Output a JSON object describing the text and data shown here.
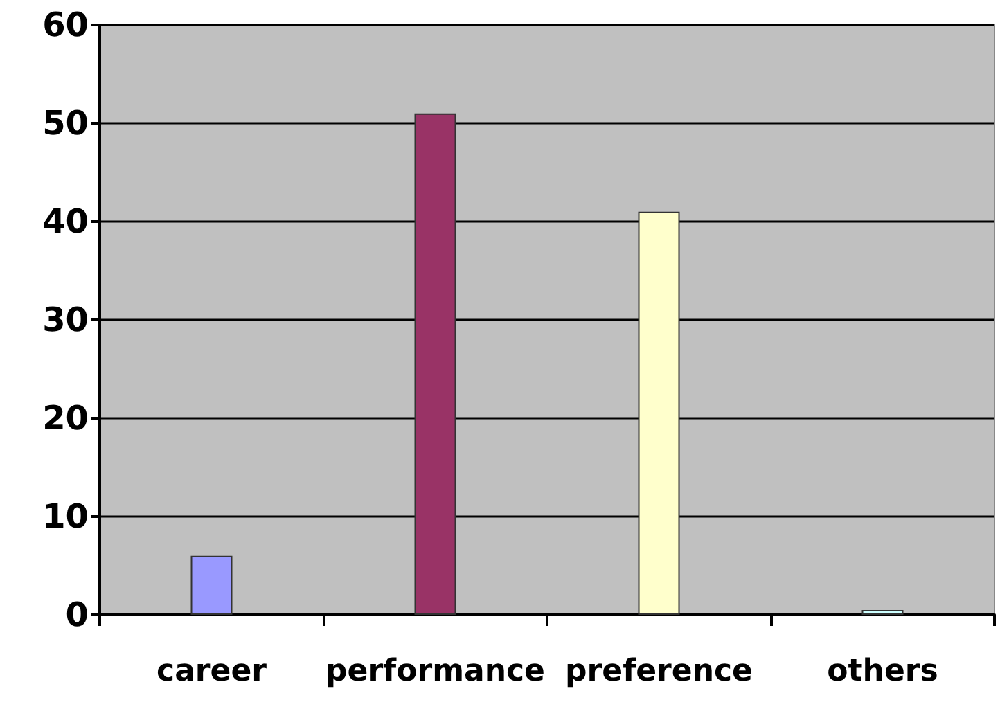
{
  "chart_data": {
    "type": "bar",
    "categories": [
      "career",
      "performance",
      "preference",
      "others"
    ],
    "values": [
      6,
      51,
      41,
      0.5
    ],
    "colors": [
      "#9999ff",
      "#993366",
      "#ffffcc",
      "#ccffff"
    ],
    "ylim": [
      0,
      60
    ],
    "yticks": [
      0,
      10,
      20,
      30,
      40,
      50,
      60
    ],
    "grid": "y"
  }
}
